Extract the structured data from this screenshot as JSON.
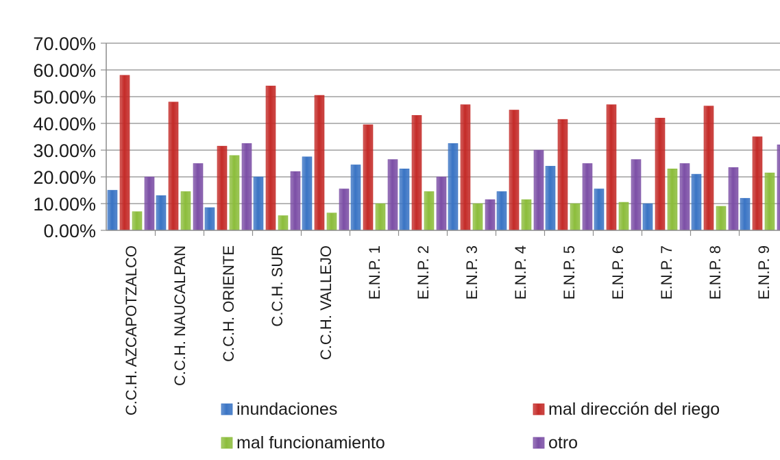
{
  "chart_data": {
    "type": "bar",
    "title": "",
    "xlabel": "",
    "ylabel": "",
    "ylim": [
      0,
      0.7
    ],
    "y_ticks": [
      "0.00%",
      "10.00%",
      "20.00%",
      "30.00%",
      "40.00%",
      "50.00%",
      "60.00%",
      "70.00%"
    ],
    "grid": true,
    "legend_placement": "bottom",
    "categories": [
      "C.C.H.  AZCAPOTZALCO",
      "C.C.H.  NAUCALPAN",
      "C.C.H.  ORIENTE",
      "C.C.H.  SUR",
      "C.C.H.  VALLEJO",
      "E.N.P. 1",
      "E.N.P. 2",
      "E.N.P. 3",
      "E.N.P. 4",
      "E.N.P. 5",
      "E.N.P. 6",
      "E.N.P. 7",
      "E.N.P. 8",
      "E.N.P. 9"
    ],
    "series": [
      {
        "name": "inundaciones",
        "color": "#3a74c4",
        "values": [
          0.15,
          0.13,
          0.085,
          0.2,
          0.275,
          0.245,
          0.23,
          0.325,
          0.145,
          0.24,
          0.155,
          0.1,
          0.21,
          0.12
        ]
      },
      {
        "name": "mal dirección del riego",
        "color": "#c42b28",
        "values": [
          0.58,
          0.48,
          0.315,
          0.54,
          0.505,
          0.395,
          0.43,
          0.47,
          0.45,
          0.415,
          0.47,
          0.42,
          0.465,
          0.35
        ]
      },
      {
        "name": "mal funcionamiento",
        "color": "#8cbd3c",
        "values": [
          0.07,
          0.145,
          0.28,
          0.055,
          0.065,
          0.1,
          0.145,
          0.1,
          0.115,
          0.1,
          0.105,
          0.23,
          0.09,
          0.215
        ]
      },
      {
        "name": "otro",
        "color": "#7c4fa6",
        "values": [
          0.2,
          0.25,
          0.325,
          0.22,
          0.155,
          0.265,
          0.2,
          0.115,
          0.3,
          0.25,
          0.265,
          0.25,
          0.235,
          0.32
        ]
      }
    ]
  }
}
